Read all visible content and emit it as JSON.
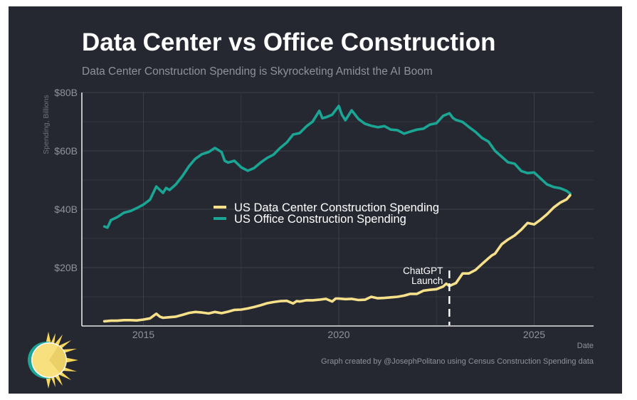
{
  "title": "Data Center vs Office Construction",
  "subtitle": "Data Center Construction Spending is Skyrocketing Amidst the AI Boom",
  "credit": "Graph created by @JosephPolitano using Census Construction Spending data",
  "logo": {
    "icon": "sun-logo-icon"
  },
  "colors": {
    "background": "#252831",
    "data_center": "#f7e08a",
    "office": "#1aa594",
    "grid": "#3a3d46",
    "axis": "#e6e6e6",
    "tick_text": "#8f929a",
    "annotation": "#ffffff"
  },
  "chart_data": {
    "type": "line",
    "title": "Data Center vs Office Construction",
    "subtitle": "Data Center Construction Spending is Skyrocketing Amidst the AI Boom",
    "xlabel": "Date",
    "ylabel": "Spending, Billions",
    "xlim": [
      2013.4,
      2026.5
    ],
    "ylim": [
      0,
      80
    ],
    "x_ticks": [
      2015,
      2020,
      2025
    ],
    "x_tick_labels": [
      "2015",
      "2020",
      "2025"
    ],
    "y_ticks": [
      20,
      40,
      60,
      80
    ],
    "y_tick_labels": [
      "$20B",
      "$40B",
      "$60B",
      "$80B"
    ],
    "grid": true,
    "legend": {
      "placement": "center-left",
      "entries": [
        "US Data Center Construction Spending",
        "US Office Construction Spending"
      ]
    },
    "annotation": {
      "text_lines": [
        "ChatGPT",
        "Launch"
      ],
      "x": 2022.83,
      "style": "dashed-vertical"
    },
    "series": [
      {
        "name": "US Data Center Construction Spending",
        "color": "#f7e08a",
        "x": [
          2014.0,
          2014.17,
          2014.33,
          2014.5,
          2014.67,
          2014.83,
          2015.0,
          2015.17,
          2015.33,
          2015.42,
          2015.5,
          2015.67,
          2015.83,
          2016.0,
          2016.17,
          2016.33,
          2016.5,
          2016.67,
          2016.83,
          2017.0,
          2017.17,
          2017.33,
          2017.5,
          2017.67,
          2017.83,
          2018.0,
          2018.17,
          2018.33,
          2018.5,
          2018.67,
          2018.83,
          2018.92,
          2019.0,
          2019.17,
          2019.33,
          2019.5,
          2019.67,
          2019.83,
          2019.92,
          2020.0,
          2020.17,
          2020.33,
          2020.5,
          2020.67,
          2020.83,
          2021.0,
          2021.17,
          2021.33,
          2021.5,
          2021.67,
          2021.83,
          2022.0,
          2022.17,
          2022.33,
          2022.5,
          2022.67,
          2022.75,
          2022.83,
          2023.0,
          2023.17,
          2023.33,
          2023.5,
          2023.67,
          2023.83,
          2023.92,
          2024.0,
          2024.17,
          2024.33,
          2024.5,
          2024.67,
          2024.83,
          2025.0,
          2025.17,
          2025.33,
          2025.5,
          2025.67,
          2025.83,
          2025.92
        ],
        "values": [
          1.6,
          1.8,
          1.8,
          2.0,
          2.0,
          1.9,
          2.2,
          2.6,
          4.2,
          3.2,
          2.8,
          3.0,
          3.2,
          3.8,
          4.5,
          4.8,
          4.6,
          4.3,
          4.8,
          4.4,
          4.9,
          5.5,
          5.6,
          6.0,
          6.5,
          7.1,
          7.8,
          8.2,
          8.5,
          8.6,
          7.7,
          8.5,
          8.4,
          8.8,
          8.8,
          9.0,
          9.3,
          8.4,
          9.4,
          9.4,
          9.2,
          9.3,
          8.9,
          9.0,
          10.0,
          9.5,
          9.6,
          9.8,
          10.0,
          10.4,
          11.0,
          11.0,
          12.1,
          12.4,
          12.6,
          13.5,
          14.5,
          13.7,
          14.7,
          18.0,
          18.0,
          19.2,
          21.3,
          23.2,
          24.2,
          24.8,
          28.0,
          29.6,
          31.0,
          33.0,
          35.3,
          34.8,
          36.5,
          38.3,
          40.6,
          42.3,
          43.4,
          44.8
        ]
      },
      {
        "name": "US Office Construction Spending",
        "color": "#1aa594",
        "x": [
          2014.0,
          2014.08,
          2014.17,
          2014.33,
          2014.5,
          2014.67,
          2014.83,
          2015.0,
          2015.17,
          2015.33,
          2015.5,
          2015.58,
          2015.67,
          2015.83,
          2016.0,
          2016.17,
          2016.33,
          2016.5,
          2016.67,
          2016.83,
          2017.0,
          2017.08,
          2017.17,
          2017.33,
          2017.5,
          2017.67,
          2017.83,
          2018.0,
          2018.17,
          2018.33,
          2018.5,
          2018.67,
          2018.83,
          2019.0,
          2019.17,
          2019.33,
          2019.5,
          2019.58,
          2019.67,
          2019.83,
          2020.0,
          2020.08,
          2020.17,
          2020.25,
          2020.33,
          2020.5,
          2020.67,
          2020.83,
          2021.0,
          2021.17,
          2021.33,
          2021.5,
          2021.67,
          2021.83,
          2022.0,
          2022.17,
          2022.33,
          2022.5,
          2022.67,
          2022.83,
          2022.92,
          2023.0,
          2023.17,
          2023.33,
          2023.5,
          2023.67,
          2023.83,
          2024.0,
          2024.17,
          2024.33,
          2024.5,
          2024.67,
          2024.83,
          2025.0,
          2025.17,
          2025.33,
          2025.5,
          2025.67,
          2025.83,
          2025.92
        ],
        "values": [
          34.1,
          33.7,
          36.3,
          37.3,
          38.8,
          39.4,
          40.4,
          41.6,
          43.3,
          47.8,
          45.6,
          47.3,
          46.6,
          48.5,
          51.4,
          54.8,
          57.3,
          58.9,
          59.6,
          61.0,
          59.6,
          56.6,
          56.0,
          56.6,
          54.4,
          53.2,
          54.1,
          56.0,
          57.6,
          58.7,
          61.0,
          62.9,
          65.6,
          66.1,
          68.4,
          70.0,
          73.7,
          71.2,
          71.5,
          72.4,
          75.4,
          72.4,
          70.5,
          72.2,
          73.9,
          71.0,
          69.3,
          68.6,
          68.1,
          68.5,
          67.3,
          67.1,
          65.9,
          66.6,
          67.3,
          67.6,
          69.0,
          69.5,
          72.0,
          72.9,
          71.3,
          70.6,
          69.9,
          68.2,
          66.5,
          64.4,
          63.2,
          60.0,
          58.0,
          56.1,
          55.6,
          53.1,
          52.4,
          52.6,
          50.5,
          48.5,
          47.6,
          47.2,
          46.3,
          45.4
        ]
      }
    ]
  }
}
